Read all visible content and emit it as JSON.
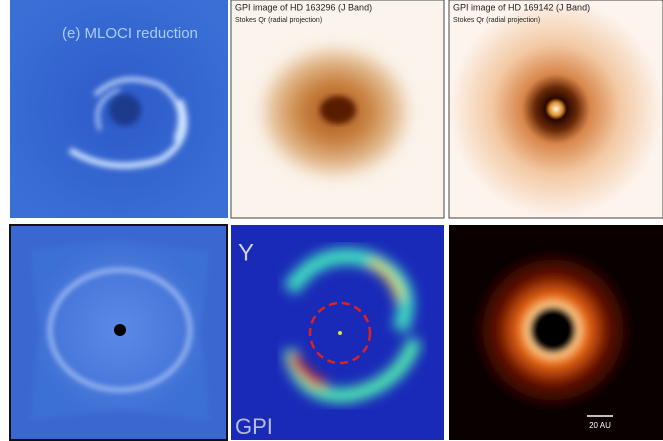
{
  "panels": [
    {
      "label": "(e) MLOCI reduction"
    },
    {
      "title": "GPI image of HD 163296 (J Band)",
      "subtitle": "Stokes Qr (radial projection)"
    },
    {
      "title": "GPI image of HD 169142 (J Band)",
      "subtitle": "Stokes Qr (radial projection)"
    },
    {},
    {
      "band": "Y",
      "instrument": "GPI"
    },
    {
      "scale": "20 AU"
    }
  ]
}
